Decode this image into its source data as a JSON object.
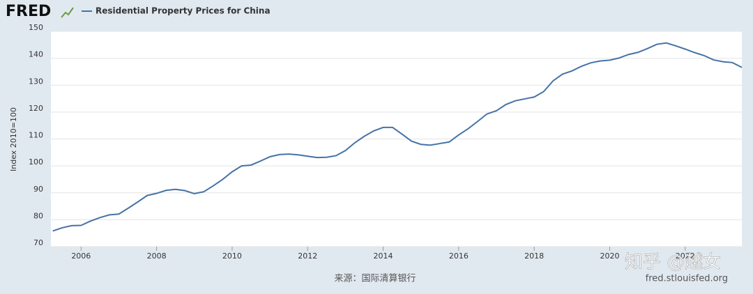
{
  "logo": "FRED",
  "watermark": "知乎 @越女",
  "chart_data": {
    "type": "line",
    "y_label": "Index 2010=100",
    "source_note": "来源：国际清算银行",
    "credit": "fred.stlouisfed.org",
    "x": [
      2005.25,
      2005.5,
      2005.75,
      2006,
      2006.25,
      2006.5,
      2006.75,
      2007,
      2007.25,
      2007.5,
      2007.75,
      2008,
      2008.25,
      2008.5,
      2008.75,
      2009,
      2009.25,
      2009.5,
      2009.75,
      2010,
      2010.25,
      2010.5,
      2010.75,
      2011,
      2011.25,
      2011.5,
      2011.75,
      2012,
      2012.25,
      2012.5,
      2012.75,
      2013,
      2013.25,
      2013.5,
      2013.75,
      2014,
      2014.25,
      2014.5,
      2014.75,
      2015,
      2015.25,
      2015.5,
      2015.75,
      2016,
      2016.25,
      2016.5,
      2016.75,
      2017,
      2017.25,
      2017.5,
      2017.75,
      2018,
      2018.25,
      2018.5,
      2018.75,
      2019,
      2019.25,
      2019.5,
      2019.75,
      2020,
      2020.25,
      2020.5,
      2020.75,
      2021,
      2021.25,
      2021.5,
      2021.75,
      2022,
      2022.25,
      2022.5,
      2022.75,
      2023,
      2023.25,
      2023.5
    ],
    "series": [
      {
        "name": "Residential Property Prices for China",
        "color": "#4572a7",
        "values": [
          75.8,
          77,
          77.8,
          77.9,
          79.5,
          80.8,
          81.8,
          82.1,
          84.3,
          86.6,
          89,
          89.8,
          90.9,
          91.3,
          90.8,
          89.7,
          90.4,
          92.6,
          95,
          97.8,
          100,
          100.3,
          101.8,
          103.4,
          104.2,
          104.4,
          104.1,
          103.6,
          103.1,
          103.2,
          103.8,
          105.7,
          108.6,
          111,
          113,
          114.3,
          114.3,
          111.8,
          109.2,
          108,
          107.7,
          108.3,
          108.9,
          111.5,
          113.8,
          116.5,
          119.3,
          120.5,
          122.8,
          124.2,
          124.9,
          125.6,
          127.6,
          131.6,
          134.1,
          135.3,
          137,
          138.3,
          139,
          139.3,
          140.1,
          141.4,
          142.2,
          143.6,
          145.2,
          145.7,
          144.6,
          143.4,
          142.1,
          141,
          139.4,
          138.7,
          138.4,
          136.6
        ]
      }
    ],
    "xlim": [
      2005.2,
      2023.5
    ],
    "ylim": [
      70,
      150
    ],
    "xticks": [
      2006,
      2008,
      2010,
      2012,
      2014,
      2016,
      2018,
      2020,
      2022
    ],
    "yticks": [
      70,
      80,
      90,
      100,
      110,
      120,
      130,
      140,
      150
    ],
    "grid": true
  }
}
